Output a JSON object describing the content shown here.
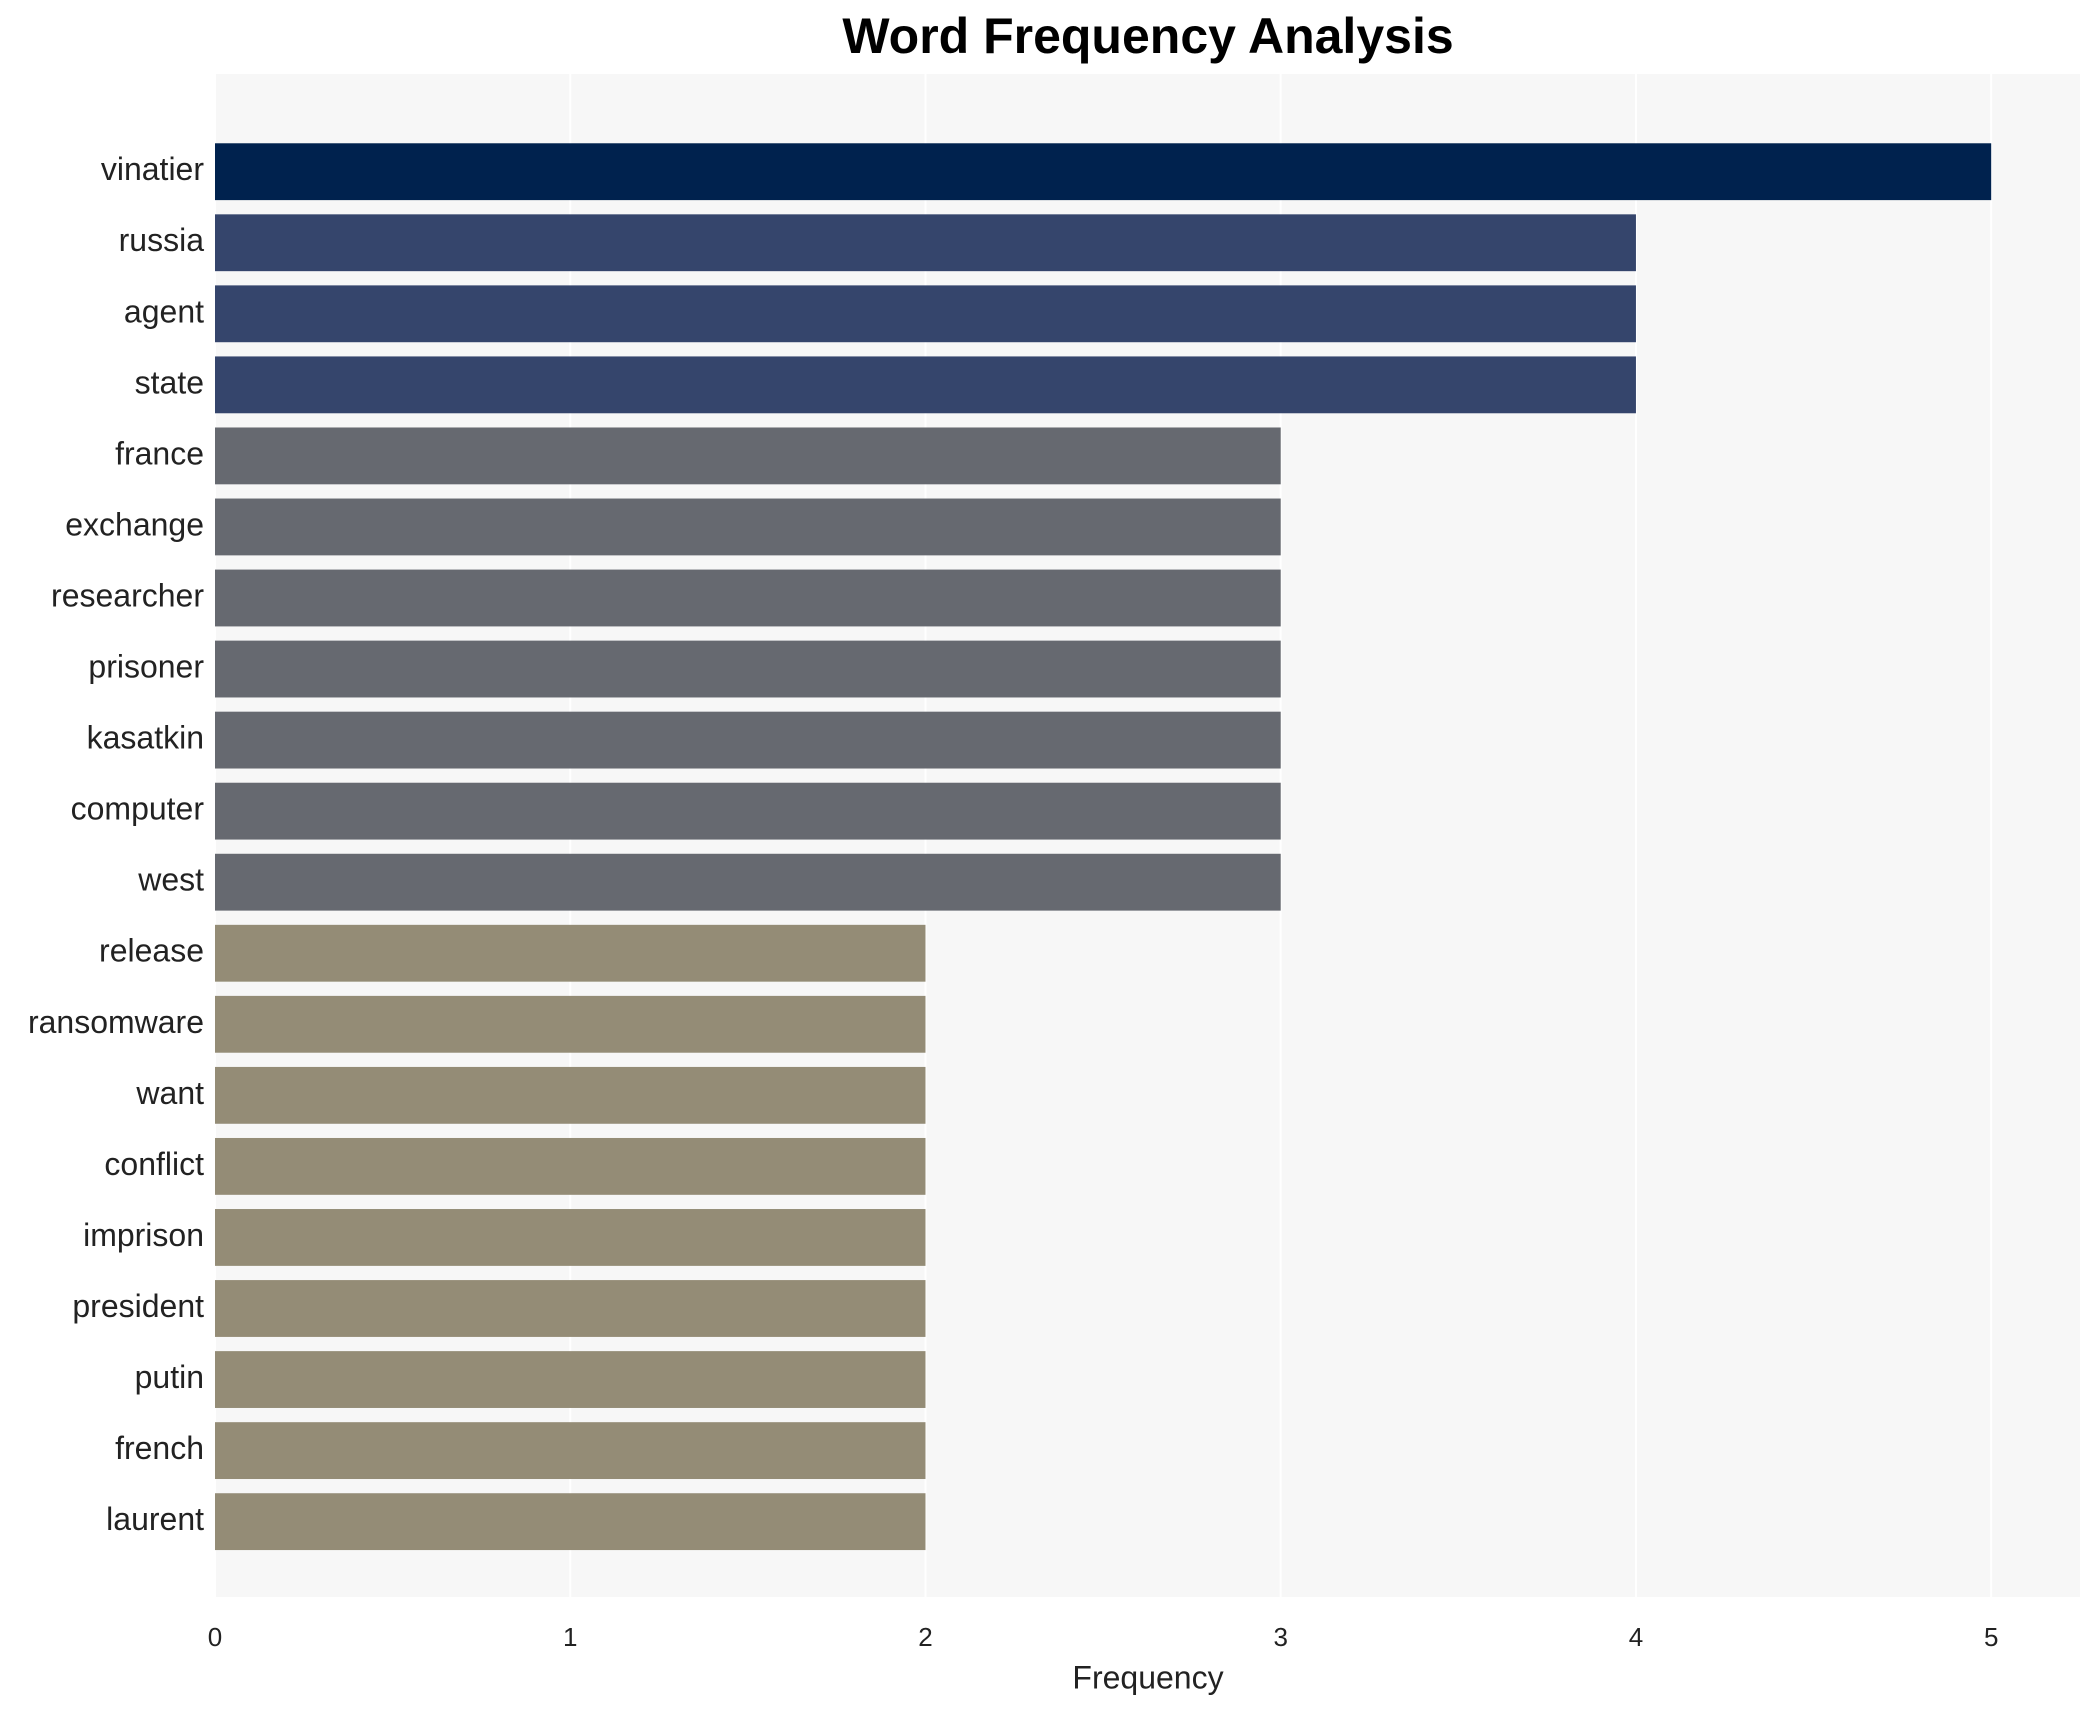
{
  "chart_data": {
    "type": "barh",
    "title": "Word Frequency Analysis",
    "x_label": "Frequency",
    "categories": [
      "vinatier",
      "russia",
      "agent",
      "state",
      "france",
      "exchange",
      "researcher",
      "prisoner",
      "kasatkin",
      "computer",
      "west",
      "release",
      "ransomware",
      "want",
      "conflict",
      "imprison",
      "president",
      "putin",
      "french",
      "laurent"
    ],
    "values": [
      5,
      4,
      4,
      4,
      3,
      3,
      3,
      3,
      3,
      3,
      3,
      2,
      2,
      2,
      2,
      2,
      2,
      2,
      2,
      2
    ],
    "colors": [
      "#00224e",
      "#35456c",
      "#35456c",
      "#35456c",
      "#666970",
      "#666970",
      "#666970",
      "#666970",
      "#666970",
      "#666970",
      "#666970",
      "#948c76",
      "#948c76",
      "#948c76",
      "#948c76",
      "#948c76",
      "#948c76",
      "#948c76",
      "#948c76",
      "#948c76"
    ],
    "xlim": [
      0,
      5.25
    ],
    "xticks": [
      0,
      1,
      2,
      3,
      4,
      5
    ],
    "grid": true
  }
}
